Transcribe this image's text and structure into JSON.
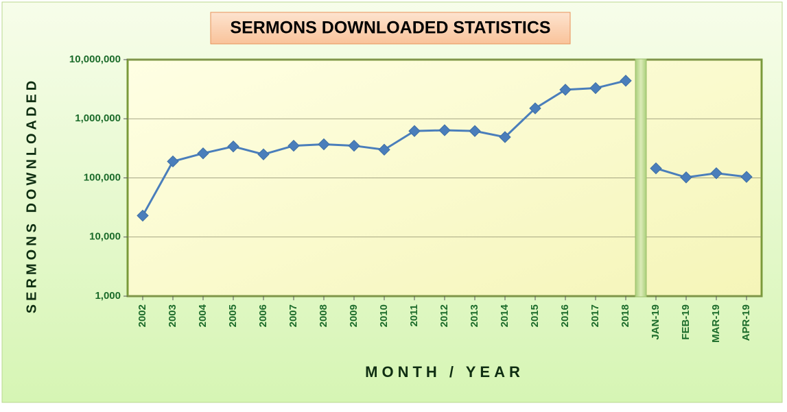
{
  "chart_data": {
    "type": "line",
    "title": "SERMONS DOWNLOADED STATISTICS",
    "x_label": "MONTH / YEAR",
    "y_label": "SERMONS DOWNLOADED",
    "categories": [
      "2002",
      "2003",
      "2004",
      "2005",
      "2006",
      "2007",
      "2008",
      "2009",
      "2010",
      "2011",
      "2012",
      "2013",
      "2014",
      "2015",
      "2016",
      "2017",
      "2018",
      "JAN-19",
      "FEB-19",
      "MAR-19",
      "APR-19"
    ],
    "series": [
      {
        "color": "#4a7ebb",
        "values": [
          23000,
          190000,
          260000,
          340000,
          250000,
          350000,
          370000,
          350000,
          300000,
          620000,
          640000,
          620000,
          490000,
          1500000,
          3100000,
          3300000,
          4400000,
          null,
          null,
          null,
          null
        ]
      },
      {
        "color": "#4a7ebb",
        "values": [
          null,
          null,
          null,
          null,
          null,
          null,
          null,
          null,
          null,
          null,
          null,
          null,
          null,
          null,
          null,
          null,
          null,
          145000,
          102000,
          120000,
          104000
        ]
      }
    ],
    "log_scale": true,
    "grid": true,
    "ylim": [
      1000,
      10000000
    ],
    "yticks": [
      {
        "value": 1000,
        "label": "1,000"
      },
      {
        "value": 10000,
        "label": "10,000"
      },
      {
        "value": 100000,
        "label": "100,000"
      },
      {
        "value": 1000000,
        "label": "1,000,000"
      },
      {
        "value": 10000000,
        "label": "10,000,000"
      }
    ]
  }
}
